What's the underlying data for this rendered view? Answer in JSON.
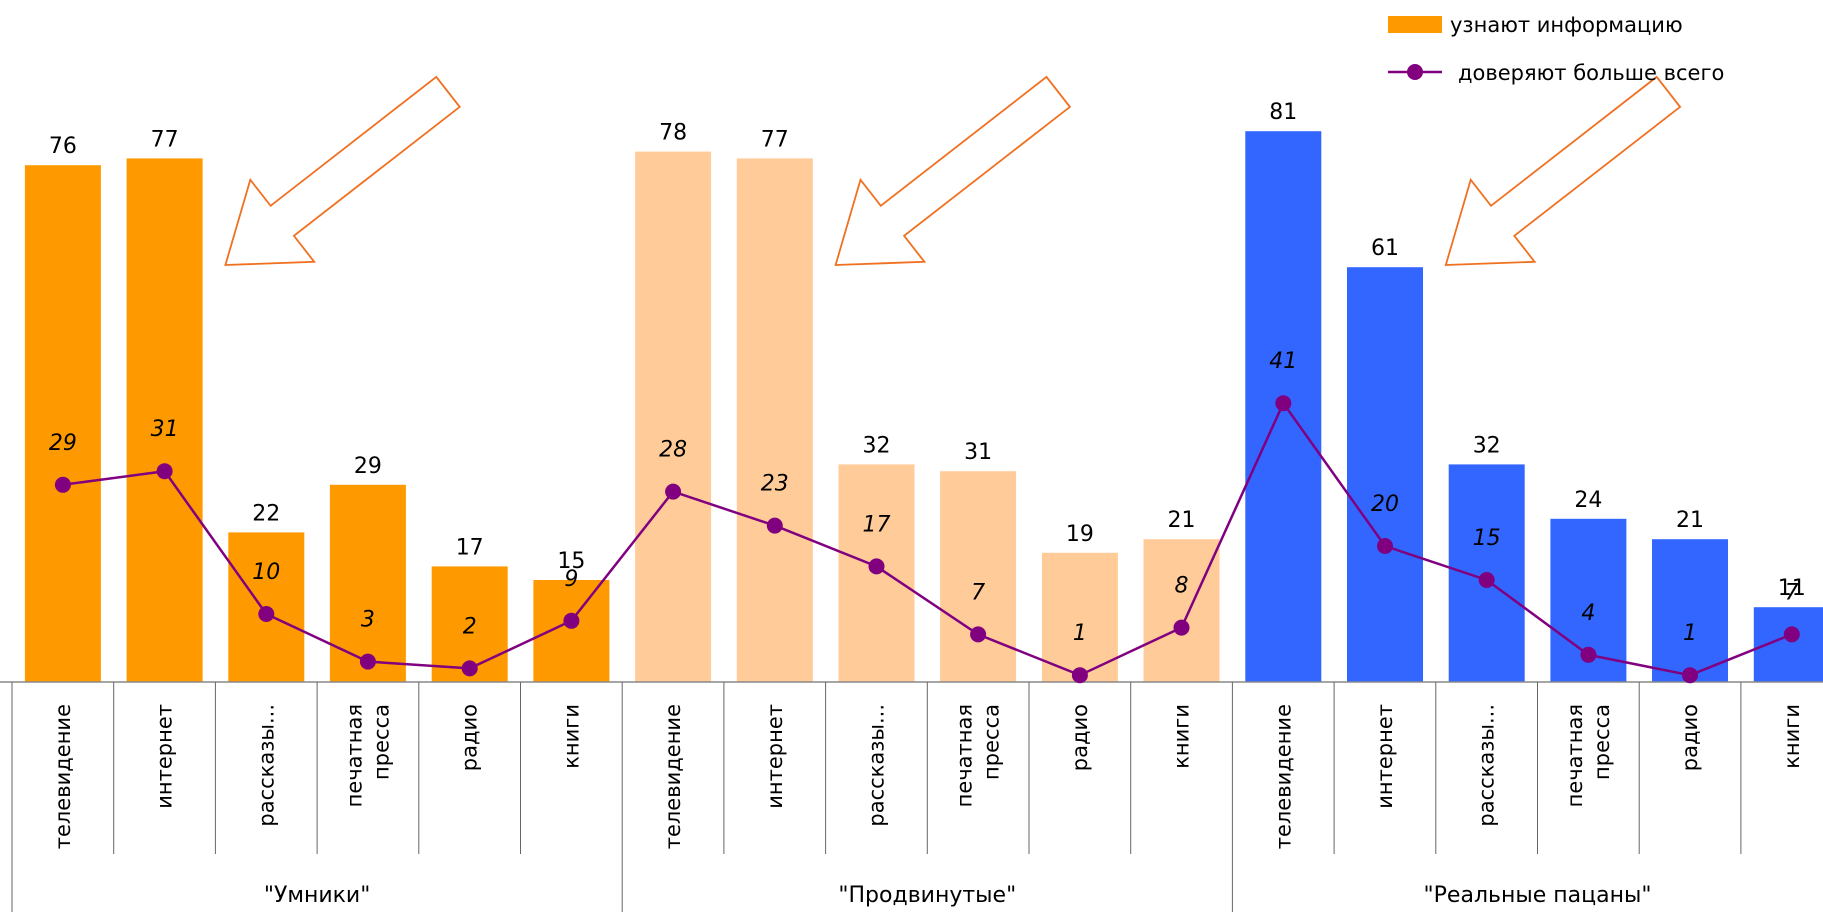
{
  "chart_data": {
    "type": "bar",
    "combo": "bar+line",
    "groups": [
      {
        "name": "\"Умники\"",
        "bar_color": "#FF9900",
        "categories": [
          [
            "телевидение"
          ],
          [
            "интернет"
          ],
          [
            "рассказы..."
          ],
          [
            "печатная",
            "пресса"
          ],
          [
            "радио"
          ],
          [
            "книги"
          ]
        ],
        "bars": [
          76,
          77,
          22,
          29,
          17,
          15
        ],
        "line": [
          29,
          31,
          10,
          3,
          2,
          9
        ]
      },
      {
        "name": "\"Продвинутые\"",
        "bar_color": "#FFCC99",
        "categories": [
          [
            "телевидение"
          ],
          [
            "интернет"
          ],
          [
            "рассказы..."
          ],
          [
            "печатная",
            "пресса"
          ],
          [
            "радио"
          ],
          [
            "книги"
          ]
        ],
        "bars": [
          78,
          77,
          32,
          31,
          19,
          21
        ],
        "line": [
          28,
          23,
          17,
          7,
          1,
          8
        ]
      },
      {
        "name": "\"Реальные пацаны\"",
        "bar_color": "#3366FF",
        "categories": [
          [
            "телевидение"
          ],
          [
            "интернет"
          ],
          [
            "рассказы..."
          ],
          [
            "печатная",
            "пресса"
          ],
          [
            "радио"
          ],
          [
            "книги"
          ]
        ],
        "bars": [
          81,
          61,
          32,
          24,
          21,
          11
        ],
        "line": [
          41,
          20,
          15,
          4,
          1,
          7
        ]
      }
    ],
    "series": [
      {
        "name": "узнают информацию",
        "kind": "bar",
        "color": "#FF9900"
      },
      {
        "name": "доверяют больше всего",
        "kind": "line",
        "color": "#800080"
      }
    ],
    "legend_position": "top-right",
    "ylim": [
      0,
      90
    ],
    "grid": false,
    "annotations": "outlined arrows pointing toward each group's top two bars"
  }
}
